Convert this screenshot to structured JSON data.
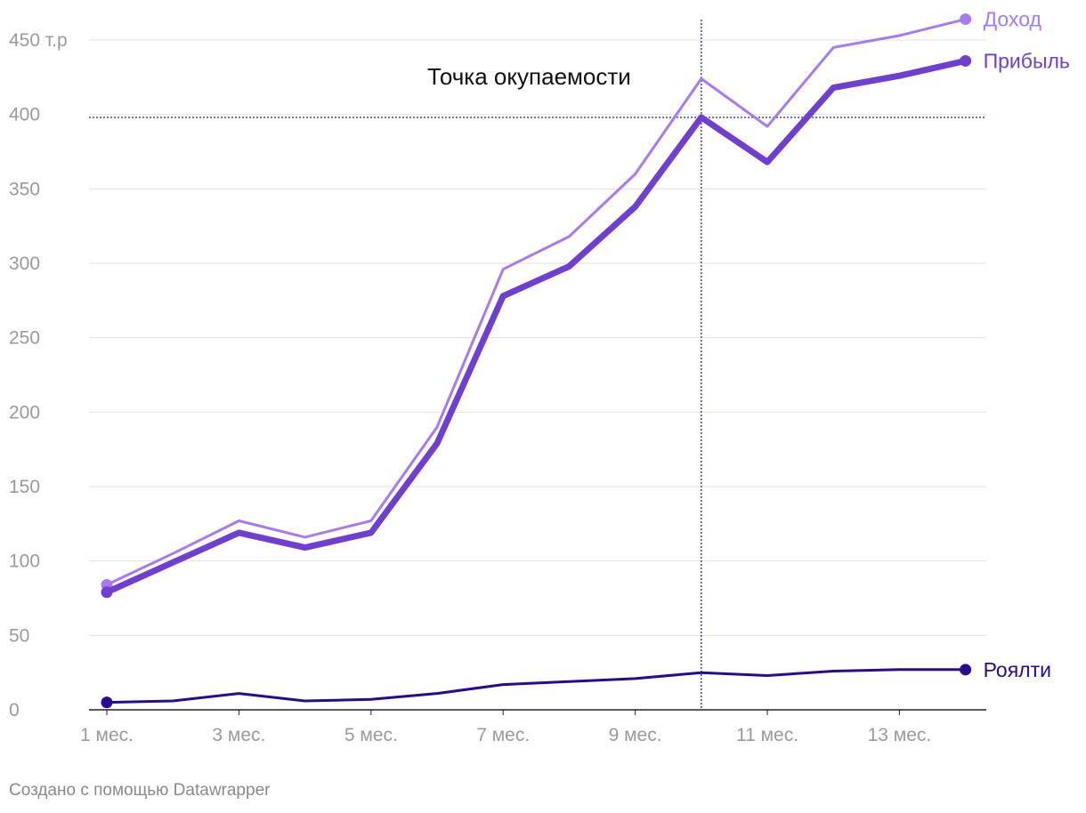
{
  "chart_data": {
    "type": "line",
    "categories": [
      "1 мес.",
      "2 мес.",
      "3 мес.",
      "4 мес.",
      "5 мес.",
      "6 мес.",
      "7 мес.",
      "8 мес.",
      "9 мес.",
      "10 мес.",
      "11 мес.",
      "12 мес.",
      "13 мес.",
      "14 мес."
    ],
    "x_tick_labels": [
      "1 мес.",
      "3 мес.",
      "5 мес.",
      "7 мес.",
      "9 мес.",
      "11 мес.",
      "13 мес."
    ],
    "x_tick_indices": [
      0,
      2,
      4,
      6,
      8,
      10,
      12
    ],
    "y_ticks": [
      0,
      50,
      100,
      150,
      200,
      250,
      300,
      350,
      400,
      450
    ],
    "y_tick_labels": [
      "0",
      "50",
      "100",
      "150",
      "200",
      "250",
      "300",
      "350",
      "400",
      "450 т.р"
    ],
    "ylim": [
      0,
      450
    ],
    "grid": true,
    "series": [
      {
        "name": "Доход",
        "color": "#a77bf0",
        "width": 3,
        "values": [
          84,
          105,
          127,
          116,
          127,
          190,
          296,
          318,
          360,
          424,
          392,
          445,
          453,
          464
        ]
      },
      {
        "name": "Прибыль",
        "color": "#6e3fd0",
        "width": 7,
        "values": [
          79,
          99,
          119,
          109,
          119,
          179,
          278,
          298,
          338,
          398,
          368,
          418,
          426,
          436
        ]
      },
      {
        "name": "Роялти",
        "color": "#2a0a8f",
        "width": 3,
        "values": [
          5,
          6,
          11,
          6,
          7,
          11,
          17,
          19,
          21,
          25,
          23,
          26,
          27,
          27
        ]
      }
    ],
    "annotations": [
      {
        "type": "hline",
        "value": 398,
        "color": "#3f3fd6"
      },
      {
        "type": "vline",
        "index": 9,
        "color": "#3f3fd6"
      },
      {
        "type": "text",
        "text": "Точка окупаемости"
      }
    ]
  },
  "footer": {
    "credit": "Создано с помощью Datawrapper"
  }
}
